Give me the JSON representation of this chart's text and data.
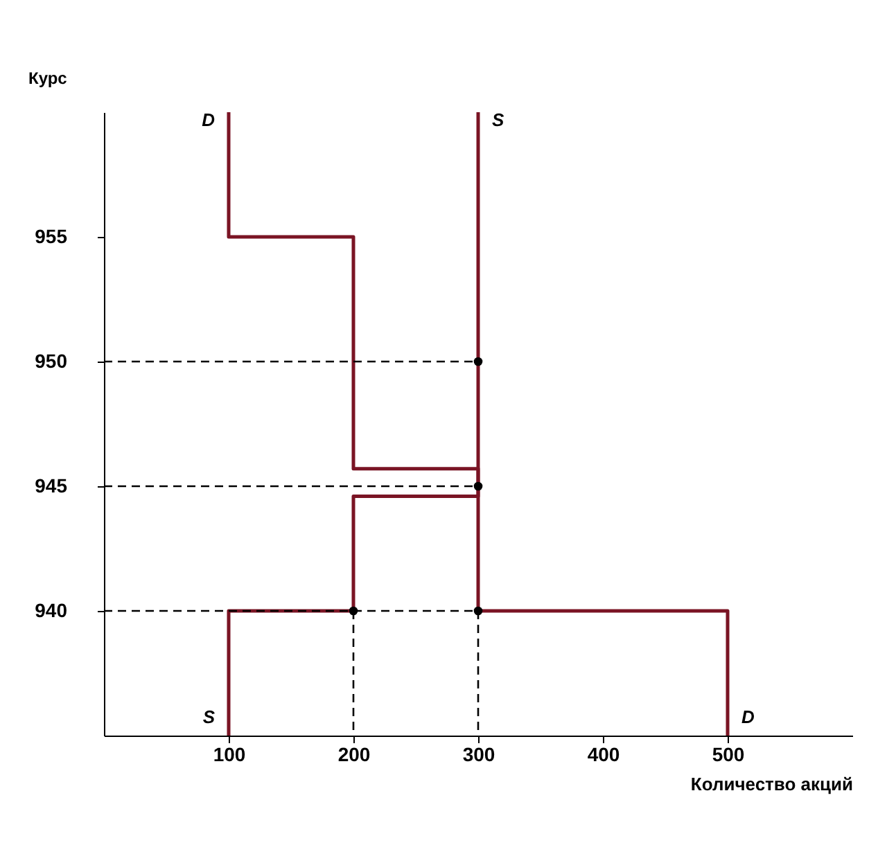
{
  "chart_data": {
    "type": "line",
    "xlabel": "Количество акций",
    "ylabel": "Курс",
    "xlim": [
      0,
      600
    ],
    "ylim": [
      935,
      960
    ],
    "xticks": [
      100,
      200,
      300,
      400,
      500
    ],
    "yticks": [
      940,
      945,
      950,
      955
    ],
    "grid": false,
    "series": [
      {
        "color": "#7a1424",
        "x": [
          100,
          100,
          200,
          200,
          300,
          300,
          500,
          500
        ],
        "values": [
          960,
          955,
          955,
          945.7,
          945.7,
          940,
          940,
          935
        ]
      },
      {
        "color": "#7a1424",
        "x": [
          100,
          100,
          200,
          200,
          300,
          300
        ],
        "values": [
          935,
          940,
          940,
          944.6,
          944.6,
          960
        ]
      },
      {
        "color": "#000000",
        "line_style": "dashed",
        "x": [
          0,
          300
        ],
        "values": [
          950,
          950
        ]
      },
      {
        "color": "#000000",
        "line_style": "dashed",
        "x": [
          0,
          300
        ],
        "values": [
          945,
          945
        ]
      },
      {
        "color": "#000000",
        "line_style": "dashed",
        "x": [
          0,
          300
        ],
        "values": [
          940,
          940
        ]
      },
      {
        "color": "#000000",
        "line_style": "dashed",
        "x": [
          200,
          200
        ],
        "values": [
          940,
          935
        ]
      },
      {
        "color": "#000000",
        "line_style": "dashed",
        "x": [
          300,
          300
        ],
        "values": [
          940,
          935
        ]
      },
      {
        "type": "scatter",
        "color": "#000000",
        "marker": "circle",
        "x": [
          300,
          300,
          300,
          200
        ],
        "values": [
          950,
          945,
          940,
          940
        ]
      }
    ],
    "annotations": [
      {
        "text": "D",
        "x": 100,
        "y": 960
      },
      {
        "text": "S",
        "x": 300,
        "y": 960
      },
      {
        "text": "S",
        "x": 100,
        "y": 935
      },
      {
        "text": "D",
        "x": 500,
        "y": 935
      }
    ]
  }
}
